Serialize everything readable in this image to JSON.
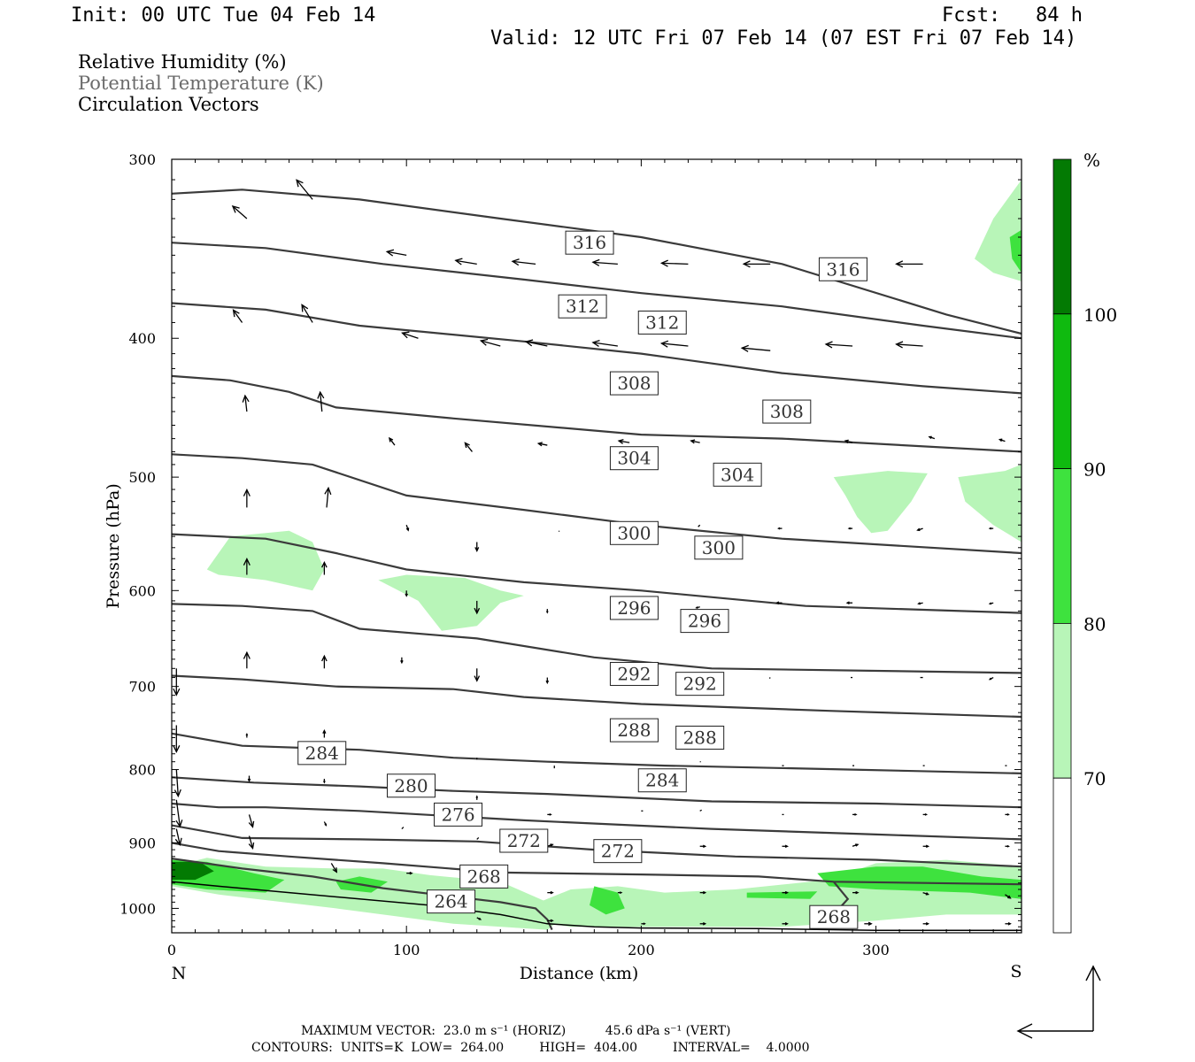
{
  "header": {
    "init": "Init: 00 UTC Tue 04 Feb 14",
    "fcst": "Fcst:   84 h",
    "valid": "Valid: 12 UTC Fri 07 Feb 14 (07 EST Fri 07 Feb 14)"
  },
  "titles": [
    {
      "text": "Relative Humidity (%)",
      "color": "#000000"
    },
    {
      "text": "Potential Temperature (K)",
      "color": "#6b6b6b"
    },
    {
      "text": "Circulation Vectors",
      "color": "#000000"
    }
  ],
  "footer": {
    "line1": "MAXIMUM VECTOR:  23.0 m s⁻¹ (HORIZ)          45.6 dPa s⁻¹ (VERT)",
    "line2": "CONTOURS:  UNITS=K  LOW=  264.00         HIGH=  404.00         INTERVAL=    4.0000"
  },
  "chart_data": {
    "type": "cross-section",
    "xlabel": "Distance (km)",
    "ylabel": "Pressure (hPa)",
    "xlim": [
      0,
      362
    ],
    "ylim": [
      1040,
      300
    ],
    "y_log": true,
    "x_ticks": [
      0,
      100,
      200,
      300
    ],
    "y_ticks": [
      300,
      400,
      500,
      600,
      700,
      800,
      900,
      1000
    ],
    "x_end_labels": {
      "left": "N",
      "right": "S"
    },
    "colorbar": {
      "unit": "%",
      "ticks": [
        70,
        80,
        90,
        100
      ],
      "colors": [
        "#ffffff",
        "#b8f5b8",
        "#3ee23e",
        "#0fba0f",
        "#037a03"
      ]
    },
    "theta_contour_labels": [
      {
        "value": "316",
        "x": 178,
        "p": 343
      },
      {
        "value": "316",
        "x": 286,
        "p": 358
      },
      {
        "value": "312",
        "x": 175,
        "p": 380
      },
      {
        "value": "312",
        "x": 209,
        "p": 390
      },
      {
        "value": "308",
        "x": 197,
        "p": 430
      },
      {
        "value": "308",
        "x": 262,
        "p": 450
      },
      {
        "value": "304",
        "x": 197,
        "p": 485
      },
      {
        "value": "304",
        "x": 241,
        "p": 498
      },
      {
        "value": "300",
        "x": 197,
        "p": 547
      },
      {
        "value": "300",
        "x": 233,
        "p": 560
      },
      {
        "value": "296",
        "x": 197,
        "p": 617
      },
      {
        "value": "296",
        "x": 227,
        "p": 630
      },
      {
        "value": "292",
        "x": 197,
        "p": 686
      },
      {
        "value": "292",
        "x": 225,
        "p": 697
      },
      {
        "value": "288",
        "x": 197,
        "p": 751
      },
      {
        "value": "288",
        "x": 225,
        "p": 760
      },
      {
        "value": "284",
        "x": 64,
        "p": 779
      },
      {
        "value": "284",
        "x": 209,
        "p": 814
      },
      {
        "value": "280",
        "x": 102,
        "p": 821
      },
      {
        "value": "276",
        "x": 122,
        "p": 860
      },
      {
        "value": "272",
        "x": 150,
        "p": 897
      },
      {
        "value": "272",
        "x": 190,
        "p": 912
      },
      {
        "value": "268",
        "x": 133,
        "p": 950
      },
      {
        "value": "268",
        "x": 282,
        "p": 1014
      },
      {
        "value": "264",
        "x": 119,
        "p": 989
      }
    ],
    "max_vector": {
      "horiz": "23.0 m s-1",
      "vert": "45.6 dPa s-1"
    },
    "contours": {
      "units": "K",
      "low": 264.0,
      "high": 404.0,
      "interval": 4.0
    }
  }
}
